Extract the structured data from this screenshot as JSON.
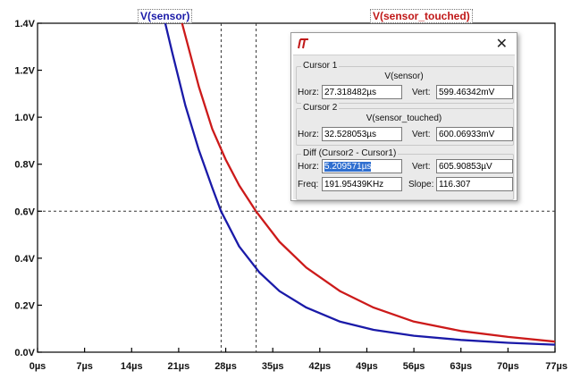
{
  "labels": {
    "sensor": "V(sensor)",
    "sensor_touched": "V(sensor_touched)"
  },
  "chart_data": {
    "type": "line",
    "xlim": [
      0,
      77
    ],
    "ylim": [
      0,
      1.4
    ],
    "x_unit": "µs",
    "y_unit": "V",
    "x_ticks": [
      "0µs",
      "7µs",
      "14µs",
      "21µs",
      "28µs",
      "35µs",
      "42µs",
      "49µs",
      "56µs",
      "63µs",
      "70µs",
      "77µs"
    ],
    "y_ticks": [
      "0.0V",
      "0.2V",
      "0.4V",
      "0.6V",
      "0.8V",
      "1.0V",
      "1.2V",
      "1.4V"
    ],
    "grid": false,
    "series": [
      {
        "name": "V(sensor)",
        "color": "#1a1aa8",
        "x": [
          19,
          20,
          22,
          24,
          26,
          27.3,
          30,
          33,
          36,
          40,
          45,
          50,
          56,
          63,
          70,
          77
        ],
        "y": [
          1.4,
          1.28,
          1.05,
          0.86,
          0.7,
          0.6,
          0.45,
          0.34,
          0.26,
          0.19,
          0.13,
          0.095,
          0.07,
          0.052,
          0.04,
          0.032
        ]
      },
      {
        "name": "V(sensor_touched)",
        "color": "#cc1a1a",
        "x": [
          21.5,
          24,
          26,
          28,
          30,
          32.5,
          36,
          40,
          45,
          50,
          56,
          63,
          70,
          77
        ],
        "y": [
          1.4,
          1.13,
          0.95,
          0.82,
          0.71,
          0.6,
          0.47,
          0.36,
          0.26,
          0.19,
          0.13,
          0.09,
          0.065,
          0.045
        ]
      }
    ],
    "cursor_x": [
      27.318482,
      32.528053
    ],
    "cursor_y": 0.6
  },
  "dialog": {
    "close": "✕",
    "cursor1": {
      "title": "Cursor 1",
      "trace": "V(sensor)",
      "horz_label": "Horz:",
      "horz": "27.318482µs",
      "vert_label": "Vert:",
      "vert": "599.46342mV"
    },
    "cursor2": {
      "title": "Cursor 2",
      "trace": "V(sensor_touched)",
      "horz_label": "Horz:",
      "horz": "32.528053µs",
      "vert_label": "Vert:",
      "vert": "600.06933mV"
    },
    "diff": {
      "title": "Diff (Cursor2 - Cursor1)",
      "horz_label": "Horz:",
      "horz": "5.209571µs",
      "vert_label": "Vert:",
      "vert": "605.90853µV",
      "freq_label": "Freq:",
      "freq": "191.95439KHz",
      "slope_label": "Slope:",
      "slope": "116.307"
    }
  }
}
